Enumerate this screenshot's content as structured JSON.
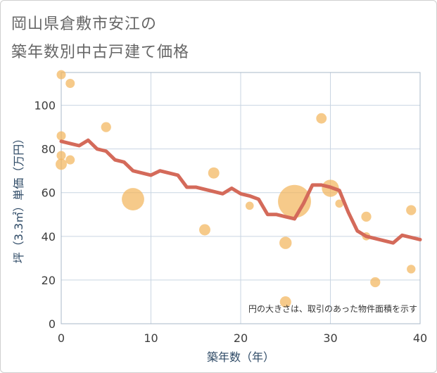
{
  "header": {
    "title_line1": "岡山県倉敷市安江の",
    "title_line2": "築年数別中古戸建て価格"
  },
  "colors": {
    "line": "#d46a5a",
    "bubble": "#f2b65d",
    "grid": "#c9d5e2",
    "plot_border": "#a9b8c8"
  },
  "chart_data": {
    "type": "scatter",
    "xlabel": "築年数（年）",
    "ylabel": "坪（3.3㎡）単価（万円）",
    "xlim": [
      0,
      40
    ],
    "ylim": [
      0,
      115
    ],
    "x_ticks": [
      0,
      10,
      20,
      30,
      40
    ],
    "y_ticks": [
      0,
      20,
      40,
      60,
      80,
      100
    ],
    "grid": true,
    "note": "円の大きさは、取引のあった物件面積を示す",
    "bubbles": [
      {
        "x": 0,
        "y": 114,
        "size": 1
      },
      {
        "x": 1,
        "y": 110,
        "size": 1
      },
      {
        "x": 0,
        "y": 86,
        "size": 1
      },
      {
        "x": 0,
        "y": 77,
        "size": 1
      },
      {
        "x": 0,
        "y": 73,
        "size": 1.5
      },
      {
        "x": 1,
        "y": 75,
        "size": 1
      },
      {
        "x": 5,
        "y": 90,
        "size": 1.2
      },
      {
        "x": 8,
        "y": 57,
        "size": 6
      },
      {
        "x": 16,
        "y": 43,
        "size": 1.5
      },
      {
        "x": 17,
        "y": 69,
        "size": 1.5
      },
      {
        "x": 21,
        "y": 54,
        "size": 0.8
      },
      {
        "x": 25,
        "y": 37,
        "size": 1.8
      },
      {
        "x": 25,
        "y": 10,
        "size": 1.5
      },
      {
        "x": 26,
        "y": 56,
        "size": 13
      },
      {
        "x": 29,
        "y": 94,
        "size": 1.3
      },
      {
        "x": 30,
        "y": 62,
        "size": 3.5
      },
      {
        "x": 31,
        "y": 55,
        "size": 0.8
      },
      {
        "x": 34,
        "y": 49,
        "size": 1.2
      },
      {
        "x": 34,
        "y": 40,
        "size": 0.8
      },
      {
        "x": 35,
        "y": 19,
        "size": 1.2
      },
      {
        "x": 39,
        "y": 52,
        "size": 1.2
      },
      {
        "x": 39,
        "y": 25,
        "size": 0.9
      }
    ],
    "series": [
      {
        "x": [
          0,
          1,
          2,
          3,
          4,
          5,
          6,
          7,
          8,
          9,
          10,
          11,
          12,
          13,
          14,
          15,
          16,
          17,
          18,
          19,
          20,
          21,
          22,
          23,
          24,
          25,
          26,
          27,
          28,
          29,
          30,
          31,
          32,
          33,
          34,
          35,
          36,
          37,
          38,
          39,
          40
        ],
        "values": [
          83.5,
          82.5,
          81.5,
          84,
          80,
          79,
          75,
          74,
          70,
          69,
          68,
          70,
          69,
          68,
          62.5,
          62.5,
          61.5,
          60.5,
          59.5,
          62,
          59.5,
          58.5,
          57,
          50,
          50,
          49,
          48,
          55,
          63.5,
          63.5,
          62.5,
          61,
          51,
          42.5,
          40,
          39,
          38,
          37,
          40.5,
          39.5,
          38.5
        ]
      }
    ]
  }
}
